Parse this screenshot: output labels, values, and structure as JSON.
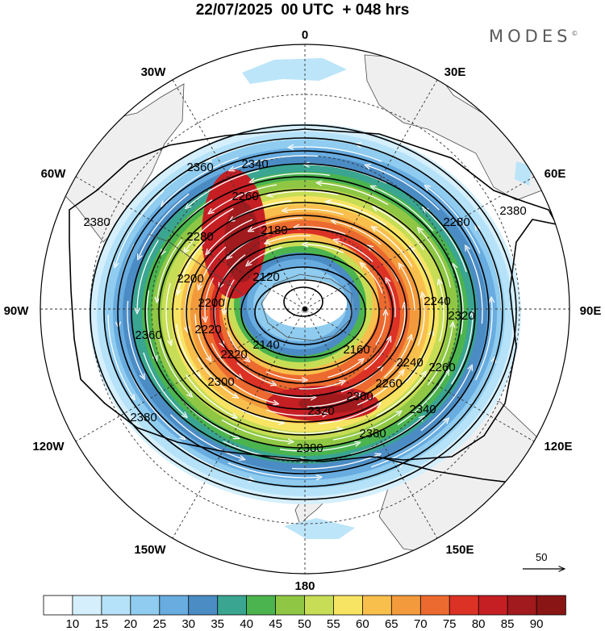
{
  "title": "22/07/2025  00 UTC  + 048 hrs",
  "brand": "MODES",
  "brand_mark": "©",
  "meridian_labels": {
    "m0": "0",
    "m30e": "30E",
    "m60e": "60E",
    "m90e": "90E",
    "m120e": "120E",
    "m150e": "150E",
    "m180": "180",
    "m150w": "150W",
    "m120w": "120W",
    "m90w": "90W",
    "m60w": "60W",
    "m30w": "30W"
  },
  "contour_labels": [
    "2120",
    "2140",
    "2160",
    "2180",
    "2200",
    "2220",
    "2240",
    "2260",
    "2280",
    "2300",
    "2320",
    "2340",
    "2360",
    "2380"
  ],
  "reference_vector": "50",
  "colorbar": {
    "labels": [
      "10",
      "15",
      "20",
      "25",
      "30",
      "35",
      "40",
      "45",
      "50",
      "55",
      "60",
      "65",
      "70",
      "75",
      "80",
      "85",
      "90"
    ],
    "colors": [
      "#ffffff",
      "#d5effc",
      "#b5e2f8",
      "#8fccef",
      "#68ace0",
      "#4b8cc4",
      "#3aa590",
      "#4bb44e",
      "#8fc744",
      "#c7dd55",
      "#f7e462",
      "#f9bf4d",
      "#f39b3c",
      "#ec6a2f",
      "#dc3226",
      "#c51f24",
      "#a11a1d",
      "#8a1515"
    ]
  },
  "colors": {
    "land": "#efefef",
    "coast": "#4a4a4a",
    "grid": "#333333",
    "contour": "#000000",
    "streamline": "#ffffff"
  }
}
